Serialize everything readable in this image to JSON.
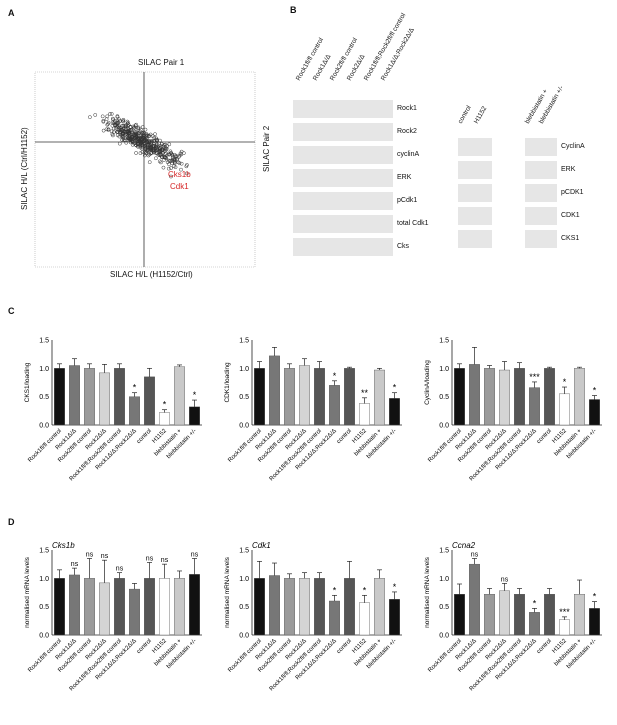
{
  "panels": {
    "A": "A",
    "B": "B",
    "C": "C",
    "D": "D"
  },
  "scatter": {
    "top_label": "SILAC Pair 1",
    "right_label": "SILAC Pair 2",
    "ylabel": "SILAC H/L (Ctrl/H1152)",
    "xlabel": "SILAC H/L (H1152/Ctrl)",
    "annotations": [
      "Cks1b",
      "Cdk1"
    ]
  },
  "blot_left": {
    "columns": [
      "Rock1fl/fl control",
      "Rock1Δ/Δ",
      "Rock2fl/fl control",
      "Rock2Δ/Δ",
      "Rock1fl/fl;Rock2fl/fl control",
      "Rock1Δ/Δ;Rock2Δ/Δ"
    ],
    "rows": [
      "Rock1",
      "Rock2",
      "cyclinA",
      "ERK",
      "pCdk1",
      "total Cdk1",
      "Cks"
    ]
  },
  "blot_mid": {
    "columns": [
      "control",
      "H1152"
    ]
  },
  "blot_right": {
    "columns": [
      "blebbistatin +",
      "blebbistatin +/-"
    ],
    "rows": [
      "CyclinA",
      "ERK",
      "pCDK1",
      "CDK1",
      "CKS1"
    ]
  },
  "bar_categories": [
    "Rock1fl/fl control",
    "Rock1Δ/Δ",
    "Rock2fl/fl control",
    "Rock2Δ/Δ",
    "Rock1fl/fl;Rock2fl/fl control",
    "Rock1Δ/Δ;Rock2Δ/Δ",
    "control",
    "H1152",
    "blebbistatin +",
    "blebbistatin +/-"
  ],
  "colors": {
    "black": "#111111",
    "dark": "#777777",
    "mid": "#9a9a9a",
    "light": "#d4d4d4",
    "white": "#ffffff",
    "red": "#d62728"
  },
  "chart_data": [
    {
      "type": "bar",
      "panel": "C",
      "ylabel": "CKS1/loading",
      "ylim": [
        0,
        1.5
      ],
      "yticks": [
        "0.0",
        "0.5",
        "1.0",
        "1.5"
      ],
      "values": [
        1.0,
        1.05,
        1.0,
        0.92,
        1.0,
        0.5,
        0.85,
        0.22,
        1.03,
        0.32
      ],
      "errors": [
        0.08,
        0.12,
        0.08,
        0.15,
        0.08,
        0.07,
        0.15,
        0.05,
        0.03,
        0.12
      ],
      "marks": [
        "",
        "",
        "",
        "",
        "",
        "*",
        "",
        "*",
        "",
        "*"
      ]
    },
    {
      "type": "bar",
      "panel": "C",
      "ylabel": "CDK1/loading",
      "ylim": [
        0,
        1.5
      ],
      "yticks": [
        "0.0",
        "0.5",
        "1.0",
        "1.5"
      ],
      "values": [
        1.0,
        1.22,
        1.0,
        1.05,
        1.0,
        0.7,
        1.0,
        0.38,
        0.97,
        0.47
      ],
      "errors": [
        0.12,
        0.15,
        0.08,
        0.12,
        0.12,
        0.08,
        0.02,
        0.1,
        0.03,
        0.1
      ],
      "marks": [
        "",
        "",
        "",
        "",
        "",
        "*",
        "",
        "**",
        "",
        "*"
      ]
    },
    {
      "type": "bar",
      "panel": "C",
      "ylabel": "CyclinA/loading",
      "ylim": [
        0,
        1.5
      ],
      "yticks": [
        "0.0",
        "0.5",
        "1.0",
        "1.5"
      ],
      "values": [
        1.0,
        1.07,
        1.0,
        0.97,
        1.0,
        0.66,
        1.0,
        0.55,
        1.0,
        0.45
      ],
      "errors": [
        0.08,
        0.3,
        0.05,
        0.15,
        0.1,
        0.1,
        0.02,
        0.12,
        0.02,
        0.07
      ],
      "marks": [
        "",
        "",
        "",
        "",
        "",
        "***",
        "",
        "*",
        "",
        "*"
      ]
    },
    {
      "type": "bar",
      "panel": "D",
      "title": "Cks1b",
      "ylabel": "normalised mRNA levels",
      "ylim": [
        0,
        1.5
      ],
      "yticks": [
        "0.0",
        "0.5",
        "1.0",
        "1.5"
      ],
      "values": [
        1.0,
        1.06,
        1.0,
        0.92,
        1.0,
        0.81,
        1.0,
        1.0,
        1.0,
        1.07
      ],
      "errors": [
        0.15,
        0.12,
        0.35,
        0.4,
        0.1,
        0.1,
        0.28,
        0.25,
        0.13,
        0.28
      ],
      "marks": [
        "",
        "ns",
        "ns",
        "ns",
        "ns",
        "",
        "ns",
        "ns",
        "",
        "ns"
      ]
    },
    {
      "type": "bar",
      "panel": "D",
      "title": "Cdk1",
      "ylabel": "normalised mRNA levels",
      "ylim": [
        0,
        1.5
      ],
      "yticks": [
        "0.0",
        "0.5",
        "1.0",
        "1.5"
      ],
      "values": [
        1.0,
        1.05,
        1.0,
        1.0,
        1.0,
        0.6,
        1.0,
        0.57,
        1.0,
        0.63
      ],
      "errors": [
        0.3,
        0.22,
        0.08,
        0.1,
        0.1,
        0.1,
        0.3,
        0.13,
        0.15,
        0.13
      ],
      "marks": [
        "",
        "",
        "",
        "",
        "",
        "*",
        "",
        "*",
        "",
        "*"
      ]
    },
    {
      "type": "bar",
      "panel": "D",
      "title": "Ccna2",
      "ylabel": "normalised mRNA levels",
      "ylim": [
        0,
        1.5
      ],
      "yticks": [
        "0.0",
        "0.5",
        "1.0",
        "1.5"
      ],
      "values": [
        0.72,
        1.25,
        0.72,
        0.78,
        0.72,
        0.4,
        0.72,
        0.27,
        0.72,
        0.47
      ],
      "errors": [
        0.18,
        0.1,
        0.1,
        0.13,
        0.1,
        0.07,
        0.1,
        0.05,
        0.25,
        0.12
      ],
      "marks": [
        "",
        "ns",
        "",
        "ns",
        "",
        "*",
        "",
        "***",
        "",
        "*"
      ]
    }
  ]
}
